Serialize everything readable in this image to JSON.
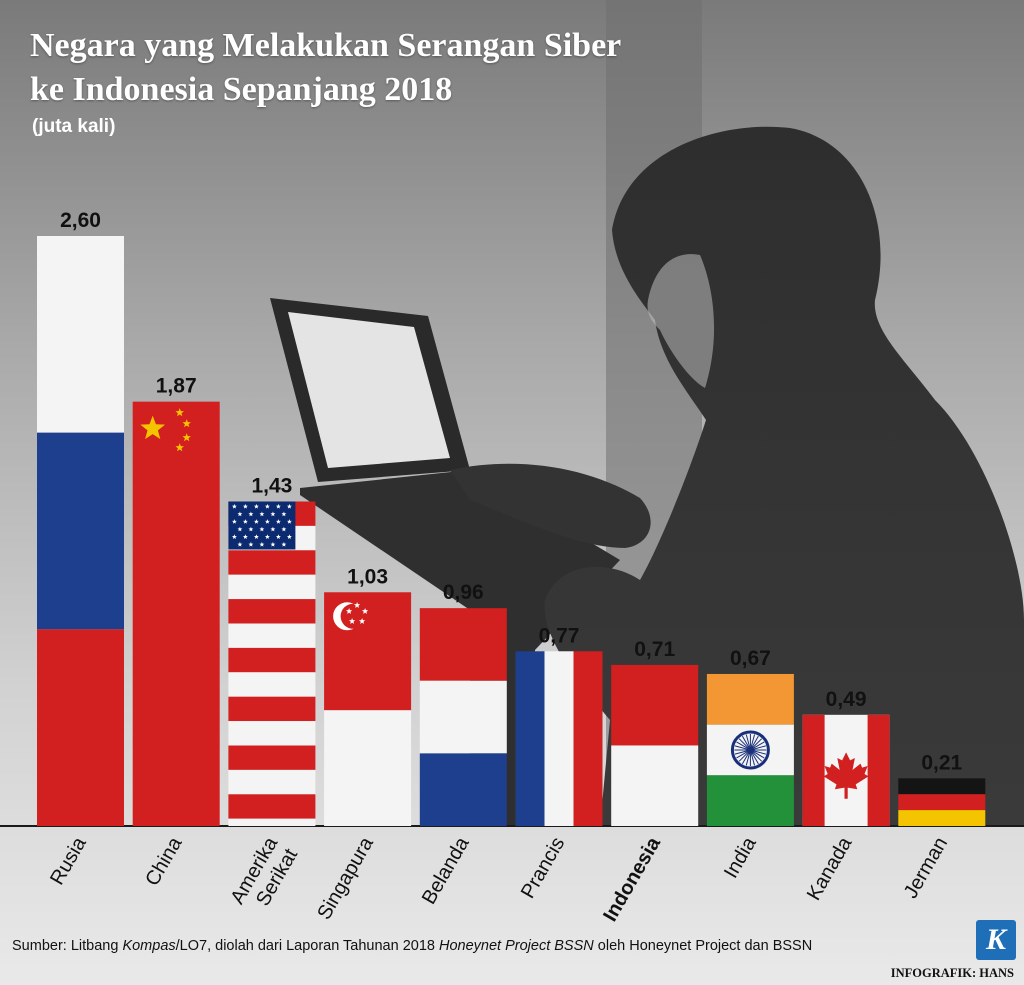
{
  "title_line1": "Negara yang Melakukan Serangan Siber",
  "title_line2": "ke Indonesia Sepanjang 2018",
  "unit_label": "(juta kali)",
  "chart_data": {
    "type": "bar",
    "title": "Negara yang Melakukan Serangan Siber ke Indonesia Sepanjang 2018",
    "ylabel": "(juta kali)",
    "xlabel": "",
    "ylim": [
      0,
      2.6
    ],
    "categories": [
      "Rusia",
      "China",
      "Amerika Serikat",
      "Singapura",
      "Belanda",
      "Prancis",
      "Indonesia",
      "India",
      "Kanada",
      "Jerman"
    ],
    "category_lines": [
      [
        "Rusia"
      ],
      [
        "China"
      ],
      [
        "Amerika",
        "Serikat"
      ],
      [
        "Singapura"
      ],
      [
        "Belanda"
      ],
      [
        "Prancis"
      ],
      [
        "Indonesia"
      ],
      [
        "India"
      ],
      [
        "Kanada"
      ],
      [
        "Jerman"
      ]
    ],
    "values": [
      2.6,
      1.87,
      1.43,
      1.03,
      0.96,
      0.77,
      0.71,
      0.67,
      0.49,
      0.21
    ],
    "value_labels": [
      "2,60",
      "1,87",
      "1,43",
      "1,03",
      "0,96",
      "0,77",
      "0,71",
      "0,67",
      "0,49",
      "0,21"
    ],
    "highlight": "Indonesia",
    "flags": [
      "russia",
      "china",
      "usa",
      "singapore",
      "netherlands",
      "france",
      "indonesia",
      "india",
      "canada",
      "germany"
    ]
  },
  "colors": {
    "red": "#d21f1f",
    "white": "#f4f4f4",
    "blue": "#1d3f8e",
    "orange": "#f39634",
    "green": "#23913a",
    "black": "#141414",
    "gold": "#f5c400",
    "navy": "#0b2a70"
  },
  "icons": {
    "logo": "kompas-logo-icon",
    "silhouette": "hacker-silhouette-icon"
  },
  "logo_letter": "K",
  "source_text": {
    "prefix": "Sumber: Litbang ",
    "kompas": "Kompas",
    "middle": "/LO7, diolah dari Laporan Tahunan 2018 ",
    "report": "Honeynet Project BSSN",
    "suffix": " oleh Honeynet Project dan BSSN"
  },
  "credit": "INFOGRAFIK: HANS"
}
